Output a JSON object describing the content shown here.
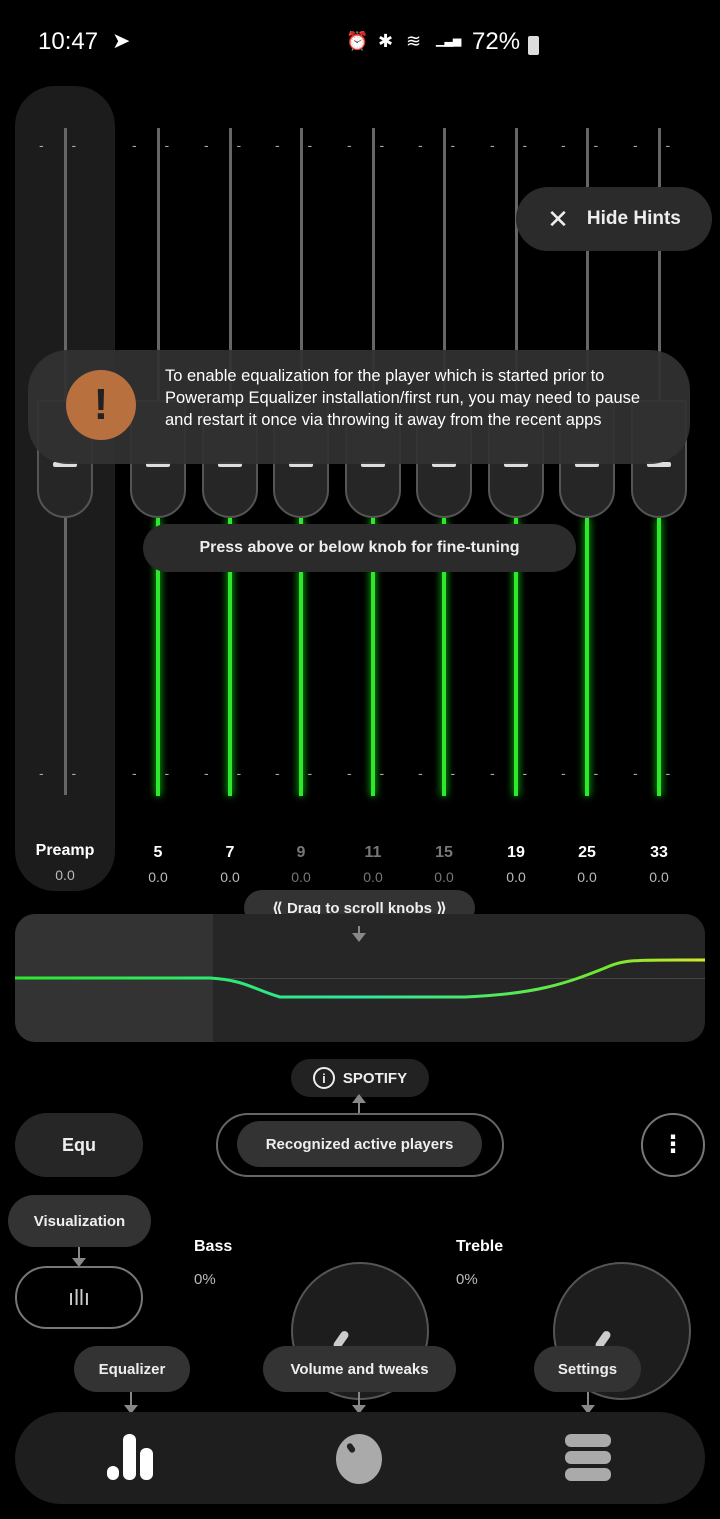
{
  "status": {
    "time": "10:47",
    "battery": "72%",
    "icons": [
      "messenger-icon",
      "alarm-icon",
      "bluetooth-icon",
      "wifi-icon",
      "signal-icon",
      "battery-icon"
    ]
  },
  "preamp": {
    "label": "Preamp",
    "value": "0.0"
  },
  "bands": [
    {
      "label": "5",
      "value": "0.0"
    },
    {
      "label": "7",
      "value": "0.0"
    },
    {
      "label": "9",
      "value": "0.0"
    },
    {
      "label": "11",
      "value": "0.0"
    },
    {
      "label": "15",
      "value": "0.0"
    },
    {
      "label": "19",
      "value": "0.0"
    },
    {
      "label": "25",
      "value": "0.0"
    },
    {
      "label": "33",
      "value": "0.0"
    }
  ],
  "hints": {
    "hide": "Hide Hints",
    "warning": "To enable equalization for the player which is started prior to Poweramp Equalizer installation/first run, you may need to pause and restart it once via throwing it away from the recent apps",
    "fine_tuning": "Press above or below knob for fine-tuning",
    "drag": "⟪ Drag to scroll knobs ⟫",
    "players": "Recognized active players",
    "visualization": "Visualization",
    "equalizer": "Equalizer",
    "volume": "Volume and tweaks",
    "settings": "Settings"
  },
  "player": "SPOTIFY",
  "preset": "Equ",
  "bass": {
    "label": "Bass",
    "value": "0%"
  },
  "treble": {
    "label": "Treble",
    "value": "0%"
  },
  "colors": {
    "accent": "#2ee82e",
    "warning": "#b8703f"
  }
}
